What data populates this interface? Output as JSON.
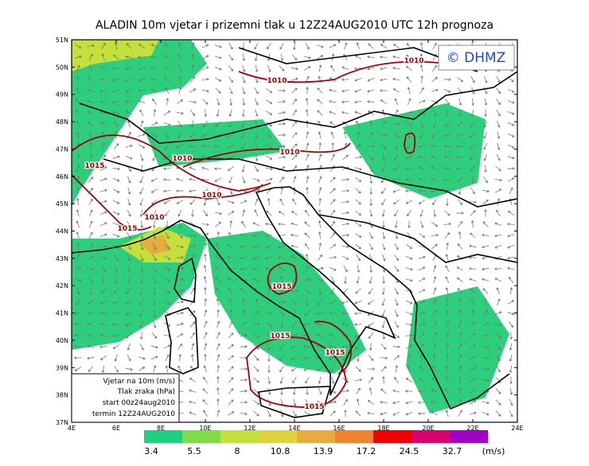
{
  "header": {
    "title": "ALADIN 10m vjetar i prizemni tlak u 12Z24AUG2010 UTC 12h prognoza"
  },
  "logo": {
    "text": "© DHMZ"
  },
  "axes": {
    "latitude_labels": [
      "51N",
      "50N",
      "49N",
      "48N",
      "47N",
      "46N",
      "45N",
      "44N",
      "43N",
      "42N",
      "41N",
      "40N",
      "39N",
      "38N",
      "37N"
    ],
    "longitude_labels": [
      "4E",
      "6E",
      "8E",
      "10E",
      "12E",
      "14E",
      "16E",
      "18E",
      "20E",
      "22E",
      "24E"
    ]
  },
  "info_box": {
    "lines": [
      "Vjetar na 10m (m/s)",
      "Tlak zraka (hPa)",
      "start 00z24aug2010",
      "termin 12Z24AUG2010"
    ]
  },
  "isobar_labels": [
    1010,
    1010,
    1010,
    1010,
    1010,
    1010,
    1015,
    1015,
    1015,
    1015,
    1015,
    1015
  ],
  "colorbar": {
    "levels": [
      3.4,
      5.5,
      8,
      10.8,
      13.9,
      17.2,
      24.5,
      32.7
    ],
    "unit": "(m/s)",
    "colors": [
      "#1fcf80",
      "#7fdc48",
      "#c4e03a",
      "#e0d23e",
      "#e6ad3e",
      "#f08232",
      "#f00000",
      "#dc006e",
      "#a000c8"
    ]
  }
}
